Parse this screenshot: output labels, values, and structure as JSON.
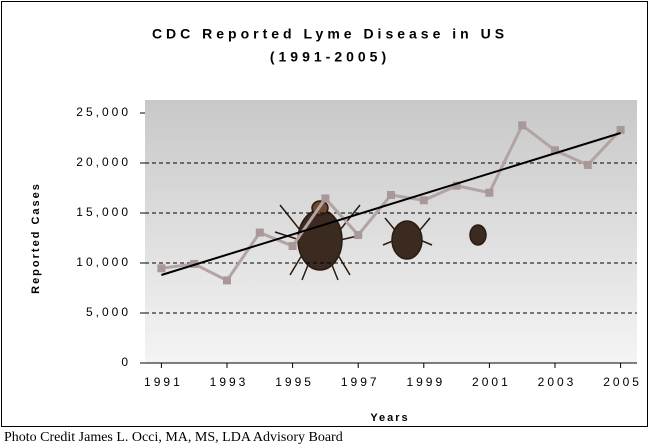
{
  "chart_data": {
    "type": "line",
    "title": "CDC Reported Lyme Disease in US",
    "subtitle": "(1991-2005)",
    "x_label": "Years",
    "y_label": "Reported Cases",
    "x": [
      1991,
      1992,
      1993,
      1994,
      1995,
      1996,
      1997,
      1998,
      1999,
      2000,
      2001,
      2002,
      2003,
      2004,
      2005
    ],
    "series": [
      {
        "color": "#b3a3a3",
        "values": [
          9470,
          9908,
          8257,
          13043,
          11700,
          16455,
          12801,
          16801,
          16273,
          17730,
          17029,
          23763,
          21273,
          19804,
          23305
        ]
      }
    ],
    "trend": {
      "color": "#000000",
      "x": [
        1991,
        2005
      ],
      "values": [
        8800,
        23000
      ]
    },
    "xlim": [
      1990.5,
      2005.5
    ],
    "xticks": [
      1991,
      1993,
      1995,
      1997,
      1999,
      2001,
      2003,
      2005
    ],
    "ylim": [
      0,
      25000
    ],
    "yticks": [
      0,
      {
        "value": 5000,
        "label": "5,000"
      },
      {
        "value": 10000,
        "label": "10,000"
      },
      {
        "value": 15000,
        "label": "15,000"
      },
      {
        "value": 20000,
        "label": "20,000"
      },
      {
        "value": 25000,
        "label": "25,000"
      }
    ],
    "grid": true,
    "footer": "Photo Credit James L. Occi, MA, MS, LDA Advisory Board"
  }
}
